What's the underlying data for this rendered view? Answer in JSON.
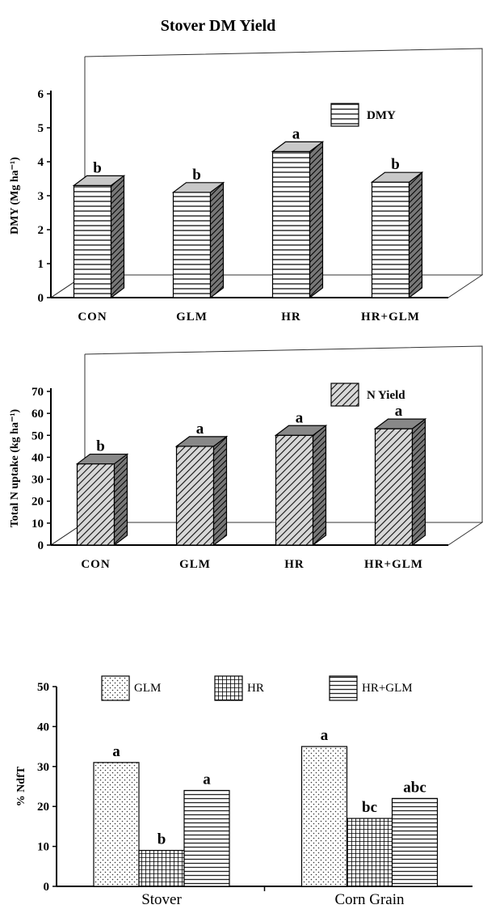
{
  "page_title": "Stover DM Yield",
  "chart_data": [
    {
      "type": "bar",
      "style": "3d",
      "ylabel": "DMY (Mg ha⁻¹)",
      "ylim": [
        0,
        6
      ],
      "yticks": [
        "0",
        "1",
        "2",
        "3",
        "4",
        "5",
        "6"
      ],
      "categories": [
        "CON",
        "GLM",
        "HR",
        "HR+GLM"
      ],
      "series": [
        {
          "name": "DMY",
          "values": [
            3.3,
            3.1,
            4.3,
            3.4
          ]
        }
      ],
      "letters": [
        "b",
        "b",
        "a",
        "b"
      ],
      "legend_position": "top-right"
    },
    {
      "type": "bar",
      "style": "3d",
      "ylabel": "Total N uptake (kg ha⁻¹)",
      "ylim": [
        0,
        70
      ],
      "yticks": [
        "0",
        "10",
        "20",
        "30",
        "40",
        "50",
        "60",
        "70"
      ],
      "categories": [
        "CON",
        "GLM",
        "HR",
        "HR+GLM"
      ],
      "series": [
        {
          "name": "N Yield",
          "values": [
            37,
            45,
            50,
            53
          ]
        }
      ],
      "letters": [
        "b",
        "a",
        "a",
        "a"
      ],
      "legend_position": "top-right"
    },
    {
      "type": "bar",
      "ylabel": "% NdfT",
      "ylim": [
        0,
        50
      ],
      "yticks": [
        "0",
        "10",
        "20",
        "30",
        "40",
        "50"
      ],
      "categories": [
        "Stover",
        "Corn Grain"
      ],
      "series": [
        {
          "name": "GLM",
          "values": [
            31,
            35
          ]
        },
        {
          "name": "HR",
          "values": [
            9,
            17
          ]
        },
        {
          "name": "HR+GLM",
          "values": [
            24,
            22
          ]
        }
      ],
      "letters": [
        [
          "a",
          "b",
          "a"
        ],
        [
          "a",
          "bc",
          "abc"
        ]
      ],
      "legend_position": "top"
    }
  ]
}
